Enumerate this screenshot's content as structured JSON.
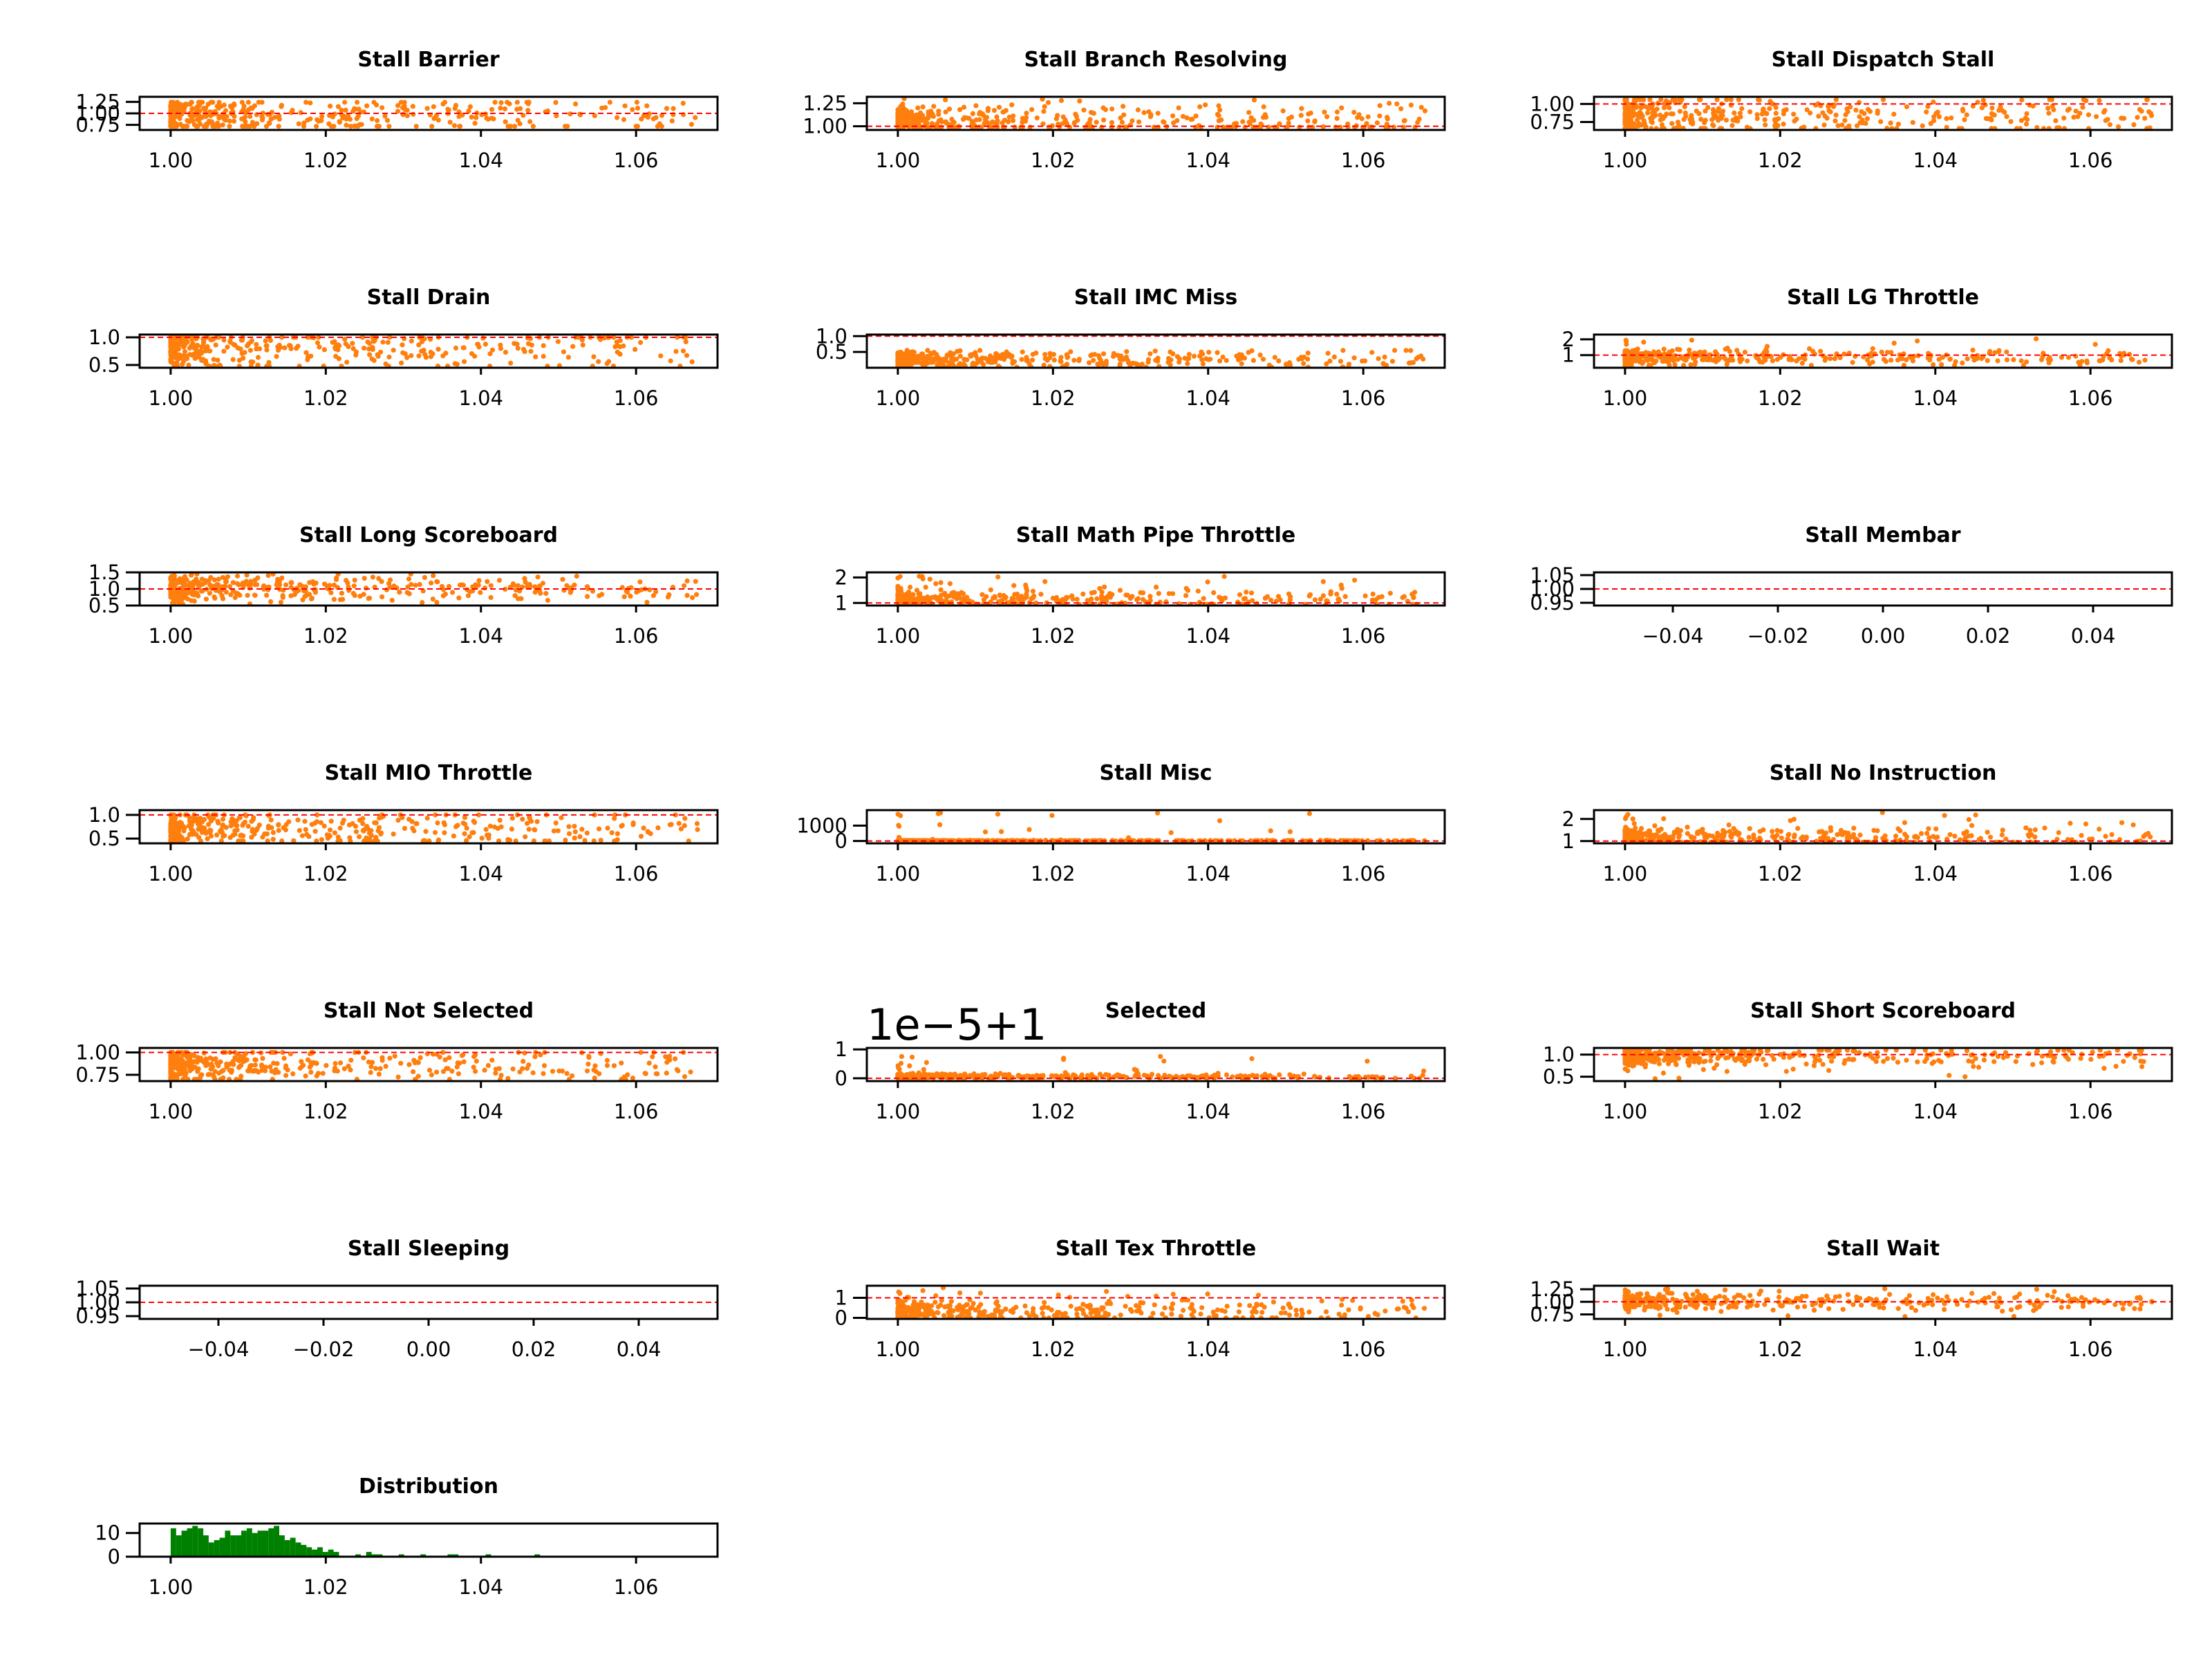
{
  "figure": {
    "background": "#ffffff"
  },
  "colors": {
    "points": "#ff7f0e",
    "reference_line": "#ff0000",
    "histogram": "#008000",
    "axes": "#000000"
  },
  "chart_data": [
    {
      "title": "Stall Barrier",
      "type": "scatter",
      "xlim": [
        0.996,
        1.0705
      ],
      "ylim": [
        0.64,
        1.36
      ],
      "xticks": [
        "1.00",
        "1.02",
        "1.04",
        "1.06"
      ],
      "xtick_values": [
        1.0,
        1.02,
        1.04,
        1.06
      ],
      "yticks": [
        "0.75",
        "1.00",
        "1.25"
      ],
      "ytick_values": [
        0.75,
        1.0,
        1.25
      ],
      "reference_y": 1.0,
      "y_low": 0.72,
      "y_high": 1.24,
      "y_center": 0.95,
      "y_spread": 0.2
    },
    {
      "title": "Stall Branch Resolving",
      "type": "scatter",
      "xlim": [
        0.996,
        1.0705
      ],
      "ylim": [
        0.96,
        1.32
      ],
      "xticks": [
        "1.00",
        "1.02",
        "1.04",
        "1.06"
      ],
      "xtick_values": [
        1.0,
        1.02,
        1.04,
        1.06
      ],
      "yticks": [
        "1.00",
        "1.25"
      ],
      "ytick_values": [
        1.0,
        1.25
      ],
      "reference_y": 1.0,
      "y_low": 0.99,
      "y_high": 1.3,
      "y_center": 1.04,
      "y_spread": 0.1
    },
    {
      "title": "Stall Dispatch Stall",
      "type": "scatter",
      "xlim": [
        0.996,
        1.0705
      ],
      "ylim": [
        0.64,
        1.1
      ],
      "xticks": [
        "1.00",
        "1.02",
        "1.04",
        "1.06"
      ],
      "xtick_values": [
        1.0,
        1.02,
        1.04,
        1.06
      ],
      "yticks": [
        "0.75",
        "1.00"
      ],
      "ytick_values": [
        0.75,
        1.0
      ],
      "reference_y": 1.0,
      "y_low": 0.66,
      "y_high": 1.06,
      "y_center": 0.82,
      "y_spread": 0.15
    },
    {
      "title": "Stall Drain",
      "type": "scatter",
      "xlim": [
        0.996,
        1.0705
      ],
      "ylim": [
        0.45,
        1.05
      ],
      "xticks": [
        "1.00",
        "1.02",
        "1.04",
        "1.06"
      ],
      "xtick_values": [
        1.0,
        1.02,
        1.04,
        1.06
      ],
      "yticks": [
        "0.5",
        "1.0"
      ],
      "ytick_values": [
        0.5,
        1.0
      ],
      "reference_y": 1.0,
      "y_low": 0.48,
      "y_high": 1.0,
      "y_center": 0.8,
      "y_spread": 0.2
    },
    {
      "title": "Stall IMC Miss",
      "type": "scatter",
      "xlim": [
        0.996,
        1.0705
      ],
      "ylim": [
        0.0,
        1.05
      ],
      "xticks": [
        "1.00",
        "1.02",
        "1.04",
        "1.06"
      ],
      "xtick_values": [
        1.0,
        1.02,
        1.04,
        1.06
      ],
      "yticks": [
        "0.5",
        "1.0"
      ],
      "ytick_values": [
        0.5,
        1.0
      ],
      "reference_y": 1.0,
      "y_low": 0.02,
      "y_high": 0.55,
      "y_center": 0.25,
      "y_spread": 0.15
    },
    {
      "title": "Stall LG Throttle",
      "type": "scatter",
      "xlim": [
        0.996,
        1.0705
      ],
      "ylim": [
        0.2,
        2.3
      ],
      "xticks": [
        "1.00",
        "1.02",
        "1.04",
        "1.06"
      ],
      "xtick_values": [
        1.0,
        1.02,
        1.04,
        1.06
      ],
      "yticks": [
        "1",
        "2"
      ],
      "ytick_values": [
        1,
        2
      ],
      "reference_y": 1.0,
      "y_low": 0.35,
      "y_high": 2.05,
      "y_center": 0.85,
      "y_spread": 0.25
    },
    {
      "title": "Stall Long Scoreboard",
      "type": "scatter",
      "xlim": [
        0.996,
        1.0705
      ],
      "ylim": [
        0.5,
        1.5
      ],
      "xticks": [
        "1.00",
        "1.02",
        "1.04",
        "1.06"
      ],
      "xtick_values": [
        1.0,
        1.02,
        1.04,
        1.06
      ],
      "yticks": [
        "0.5",
        "1.0",
        "1.5"
      ],
      "ytick_values": [
        0.5,
        1.0,
        1.5
      ],
      "reference_y": 1.0,
      "y_low": 0.55,
      "y_high": 1.45,
      "y_center": 1.0,
      "y_spread": 0.2
    },
    {
      "title": "Stall Math Pipe Throttle",
      "type": "scatter",
      "xlim": [
        0.996,
        1.0705
      ],
      "ylim": [
        0.9,
        2.2
      ],
      "xticks": [
        "1.00",
        "1.02",
        "1.04",
        "1.06"
      ],
      "xtick_values": [
        1.0,
        1.02,
        1.04,
        1.06
      ],
      "yticks": [
        "1",
        "2"
      ],
      "ytick_values": [
        1,
        2
      ],
      "reference_y": 1.0,
      "y_low": 0.95,
      "y_high": 2.05,
      "y_center": 1.1,
      "y_spread": 0.2
    },
    {
      "title": "Stall Membar",
      "type": "line",
      "xlim": [
        -0.055,
        0.055
      ],
      "ylim": [
        0.94,
        1.06
      ],
      "xticks": [
        "−0.04",
        "−0.02",
        "0.00",
        "0.02",
        "0.04"
      ],
      "xtick_values": [
        -0.04,
        -0.02,
        0.0,
        0.02,
        0.04
      ],
      "yticks": [
        "0.95",
        "1.00",
        "1.05"
      ],
      "ytick_values": [
        0.95,
        1.0,
        1.05
      ],
      "reference_y": 1.0
    },
    {
      "title": "Stall MIO Throttle",
      "type": "scatter",
      "xlim": [
        0.996,
        1.0705
      ],
      "ylim": [
        0.4,
        1.1
      ],
      "xticks": [
        "1.00",
        "1.02",
        "1.04",
        "1.06"
      ],
      "xtick_values": [
        1.0,
        1.02,
        1.04,
        1.06
      ],
      "yticks": [
        "0.5",
        "1.0"
      ],
      "ytick_values": [
        0.5,
        1.0
      ],
      "reference_y": 1.0,
      "y_low": 0.45,
      "y_high": 1.0,
      "y_center": 0.7,
      "y_spread": 0.2
    },
    {
      "title": "Stall Misc",
      "type": "scatter",
      "xlim": [
        0.996,
        1.0705
      ],
      "ylim": [
        -150,
        2000
      ],
      "xticks": [
        "1.00",
        "1.02",
        "1.04",
        "1.06"
      ],
      "xtick_values": [
        1.0,
        1.02,
        1.04,
        1.06
      ],
      "yticks": [
        "0",
        "1000"
      ],
      "ytick_values": [
        0,
        1000
      ],
      "reference_y": 1.0,
      "y_low": 0,
      "y_high": 1950,
      "y_center": 20,
      "y_spread": 10
    },
    {
      "title": "Stall No Instruction",
      "type": "scatter",
      "xlim": [
        0.996,
        1.0705
      ],
      "ylim": [
        0.9,
        2.4
      ],
      "xticks": [
        "1.00",
        "1.02",
        "1.04",
        "1.06"
      ],
      "xtick_values": [
        1.0,
        1.02,
        1.04,
        1.06
      ],
      "yticks": [
        "1",
        "2"
      ],
      "ytick_values": [
        1,
        2
      ],
      "reference_y": 1.0,
      "y_low": 0.95,
      "y_high": 2.35,
      "y_center": 1.15,
      "y_spread": 0.25
    },
    {
      "title": "Stall Not Selected",
      "type": "scatter",
      "xlim": [
        0.996,
        1.0705
      ],
      "ylim": [
        0.68,
        1.05
      ],
      "xticks": [
        "1.00",
        "1.02",
        "1.04",
        "1.06"
      ],
      "xtick_values": [
        1.0,
        1.02,
        1.04,
        1.06
      ],
      "yticks": [
        "0.75",
        "1.00"
      ],
      "ytick_values": [
        0.75,
        1.0
      ],
      "reference_y": 1.0,
      "y_low": 0.7,
      "y_high": 1.0,
      "y_center": 0.85,
      "y_spread": 0.1
    },
    {
      "title": "Selected",
      "offset_label": "1e−5+1",
      "type": "scatter",
      "xlim": [
        0.996,
        1.0705
      ],
      "ylim": [
        -0.1,
        1.05
      ],
      "xticks": [
        "1.00",
        "1.02",
        "1.04",
        "1.06"
      ],
      "xtick_values": [
        1.0,
        1.02,
        1.04,
        1.06
      ],
      "yticks": [
        "0",
        "1"
      ],
      "ytick_values": [
        0,
        1
      ],
      "reference_y": 0.0,
      "y_low": 0.0,
      "y_high": 0.8,
      "y_center": 0.05,
      "y_spread": 0.05
    },
    {
      "title": "Stall Short Scoreboard",
      "type": "scatter",
      "xlim": [
        0.996,
        1.0705
      ],
      "ylim": [
        0.4,
        1.15
      ],
      "xticks": [
        "1.00",
        "1.02",
        "1.04",
        "1.06"
      ],
      "xtick_values": [
        1.0,
        1.02,
        1.04,
        1.06
      ],
      "yticks": [
        "0.5",
        "1.0"
      ],
      "ytick_values": [
        0.5,
        1.0
      ],
      "reference_y": 1.0,
      "y_low": 0.45,
      "y_high": 1.1,
      "y_center": 0.95,
      "y_spread": 0.12
    },
    {
      "title": "Stall Sleeping",
      "type": "line",
      "xlim": [
        -0.055,
        0.055
      ],
      "ylim": [
        0.94,
        1.06
      ],
      "xticks": [
        "−0.04",
        "−0.02",
        "0.00",
        "0.02",
        "0.04"
      ],
      "xtick_values": [
        -0.04,
        -0.02,
        0.0,
        0.02,
        0.04
      ],
      "yticks": [
        "0.95",
        "1.00",
        "1.05"
      ],
      "ytick_values": [
        0.95,
        1.0,
        1.05
      ],
      "reference_y": 1.0
    },
    {
      "title": "Stall Tex Throttle",
      "type": "scatter",
      "xlim": [
        0.996,
        1.0705
      ],
      "ylim": [
        -0.05,
        1.6
      ],
      "xticks": [
        "1.00",
        "1.02",
        "1.04",
        "1.06"
      ],
      "xtick_values": [
        1.0,
        1.02,
        1.04,
        1.06
      ],
      "yticks": [
        "0",
        "1"
      ],
      "ytick_values": [
        0,
        1
      ],
      "reference_y": 1.0,
      "y_low": 0.0,
      "y_high": 1.5,
      "y_center": 0.3,
      "y_spread": 0.3
    },
    {
      "title": "Stall Wait",
      "type": "scatter",
      "xlim": [
        0.996,
        1.0705
      ],
      "ylim": [
        0.66,
        1.32
      ],
      "xticks": [
        "1.00",
        "1.02",
        "1.04",
        "1.06"
      ],
      "xtick_values": [
        1.0,
        1.02,
        1.04,
        1.06
      ],
      "yticks": [
        "0.75",
        "1.00",
        "1.25"
      ],
      "ytick_values": [
        0.75,
        1.0,
        1.25
      ],
      "reference_y": 1.0,
      "y_low": 0.7,
      "y_high": 1.3,
      "y_center": 1.0,
      "y_spread": 0.08
    },
    {
      "title": "Distribution",
      "type": "bar",
      "xlim": [
        0.996,
        1.0705
      ],
      "ylim": [
        0,
        14
      ],
      "xticks": [
        "1.00",
        "1.02",
        "1.04",
        "1.06"
      ],
      "xtick_values": [
        1.0,
        1.02,
        1.04,
        1.06
      ],
      "yticks": [
        "0",
        "10"
      ],
      "ytick_values": [
        0,
        10
      ],
      "bin_width": 0.0007,
      "bin_starts": [
        1.0,
        1.0007,
        1.0014,
        1.0021,
        1.0028,
        1.0035,
        1.0042,
        1.0049,
        1.0056,
        1.0063,
        1.007,
        1.0077,
        1.0084,
        1.0091,
        1.0098,
        1.0105,
        1.0112,
        1.0119,
        1.0126,
        1.0133,
        1.014,
        1.0147,
        1.0154,
        1.0161,
        1.0168,
        1.0175,
        1.0182,
        1.0189,
        1.0196,
        1.0203,
        1.021,
        1.0238,
        1.0252,
        1.0259,
        1.0266,
        1.0294,
        1.0322,
        1.0357,
        1.0364,
        1.0406,
        1.0469
      ],
      "counts": [
        12,
        9,
        11,
        12,
        13,
        12,
        9,
        6,
        7,
        8,
        11,
        9,
        9,
        11,
        12,
        10,
        11,
        11,
        12,
        13,
        9,
        7,
        8,
        6,
        5,
        4,
        3,
        4,
        2,
        3,
        2,
        1,
        2,
        1,
        1,
        1,
        1,
        1,
        1,
        1,
        1
      ]
    }
  ]
}
